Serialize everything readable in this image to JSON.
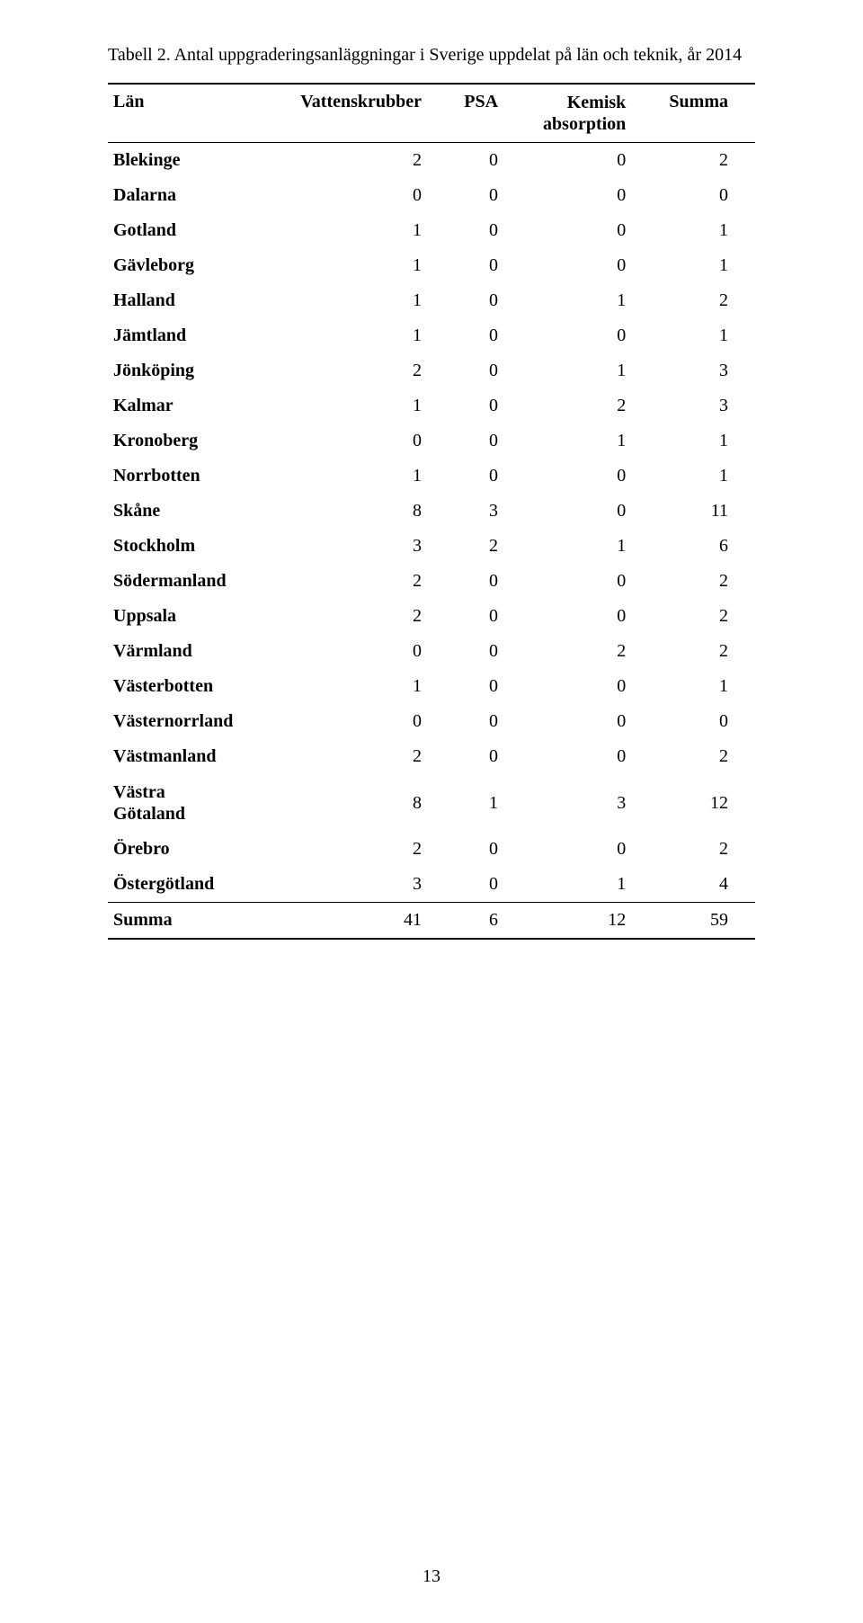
{
  "caption": "Tabell 2. Antal uppgraderingsanläggningar i Sverige uppdelat på län och teknik, år 2014",
  "columns": {
    "lan": "Län",
    "vattenskrubber": "Vattenskrubber",
    "psa": "PSA",
    "kemisk_line1": "Kemisk",
    "kemisk_line2": "absorption",
    "summa": "Summa"
  },
  "rows": [
    {
      "lan": "Blekinge",
      "v": "2",
      "p": "0",
      "k": "0",
      "s": "2"
    },
    {
      "lan": "Dalarna",
      "v": "0",
      "p": "0",
      "k": "0",
      "s": "0"
    },
    {
      "lan": "Gotland",
      "v": "1",
      "p": "0",
      "k": "0",
      "s": "1"
    },
    {
      "lan": "Gävleborg",
      "v": "1",
      "p": "0",
      "k": "0",
      "s": "1"
    },
    {
      "lan": "Halland",
      "v": "1",
      "p": "0",
      "k": "1",
      "s": "2"
    },
    {
      "lan": "Jämtland",
      "v": "1",
      "p": "0",
      "k": "0",
      "s": "1"
    },
    {
      "lan": "Jönköping",
      "v": "2",
      "p": "0",
      "k": "1",
      "s": "3"
    },
    {
      "lan": "Kalmar",
      "v": "1",
      "p": "0",
      "k": "2",
      "s": "3"
    },
    {
      "lan": "Kronoberg",
      "v": "0",
      "p": "0",
      "k": "1",
      "s": "1"
    },
    {
      "lan": "Norrbotten",
      "v": "1",
      "p": "0",
      "k": "0",
      "s": "1"
    },
    {
      "lan": "Skåne",
      "v": "8",
      "p": "3",
      "k": "0",
      "s": "11"
    },
    {
      "lan": "Stockholm",
      "v": "3",
      "p": "2",
      "k": "1",
      "s": "6"
    },
    {
      "lan": "Södermanland",
      "v": "2",
      "p": "0",
      "k": "0",
      "s": "2"
    },
    {
      "lan": "Uppsala",
      "v": "2",
      "p": "0",
      "k": "0",
      "s": "2"
    },
    {
      "lan": "Värmland",
      "v": "0",
      "p": "0",
      "k": "2",
      "s": "2"
    },
    {
      "lan": "Västerbotten",
      "v": "1",
      "p": "0",
      "k": "0",
      "s": "1"
    },
    {
      "lan": "Västernorrland",
      "v": "0",
      "p": "0",
      "k": "0",
      "s": "0"
    },
    {
      "lan": "Västmanland",
      "v": "2",
      "p": "0",
      "k": "0",
      "s": "2"
    },
    {
      "lan_multiline": [
        "Västra",
        "Götaland"
      ],
      "v": "8",
      "p": "1",
      "k": "3",
      "s": "12"
    },
    {
      "lan": "Örebro",
      "v": "2",
      "p": "0",
      "k": "0",
      "s": "2"
    },
    {
      "lan": "Östergötland",
      "v": "3",
      "p": "0",
      "k": "1",
      "s": "4"
    }
  ],
  "total": {
    "lan": "Summa",
    "v": "41",
    "p": "6",
    "k": "12",
    "s": "59"
  },
  "page_number": "13"
}
